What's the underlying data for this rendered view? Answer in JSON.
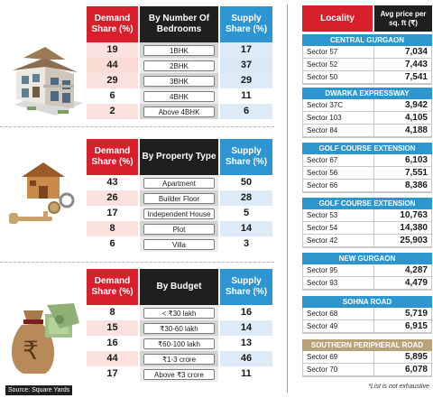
{
  "bedrooms_table": {
    "headers": {
      "demand": "Demand Share (%)",
      "category": "By Number Of Bedrooms",
      "supply": "Supply Share (%)"
    },
    "rows": [
      {
        "demand": "19",
        "label": "1BHK",
        "supply": "17"
      },
      {
        "demand": "44",
        "label": "2BHK",
        "supply": "37"
      },
      {
        "demand": "29",
        "label": "3BHK",
        "supply": "29"
      },
      {
        "demand": "6",
        "label": "4BHK",
        "supply": "11"
      },
      {
        "demand": "2",
        "label": "Above 4BHK",
        "supply": "6"
      }
    ]
  },
  "property_table": {
    "headers": {
      "demand": "Demand Share (%)",
      "category": "By Property Type",
      "supply": "Supply Share (%)"
    },
    "rows": [
      {
        "demand": "43",
        "label": "Apartment",
        "supply": "50"
      },
      {
        "demand": "26",
        "label": "Builder Floor",
        "supply": "28"
      },
      {
        "demand": "17",
        "label": "Independent House",
        "supply": "5"
      },
      {
        "demand": "8",
        "label": "Plot",
        "supply": "14"
      },
      {
        "demand": "6",
        "label": "Villa",
        "supply": "3"
      }
    ]
  },
  "budget_table": {
    "headers": {
      "demand": "Demand Share (%)",
      "category": "By Budget",
      "supply": "Supply Share (%)"
    },
    "rows": [
      {
        "demand": "8",
        "label": "< ₹30 lakh",
        "supply": "16"
      },
      {
        "demand": "15",
        "label": "₹30-60 lakh",
        "supply": "14"
      },
      {
        "demand": "16",
        "label": "₹60-100 lakh",
        "supply": "13"
      },
      {
        "demand": "44",
        "label": "₹1-3 crore",
        "supply": "46"
      },
      {
        "demand": "17",
        "label": "Above ₹3 crore",
        "supply": "11"
      }
    ]
  },
  "locality_table": {
    "headers": {
      "locality": "Locality",
      "price": "Avg price per sq. ft (₹)"
    },
    "regions": [
      {
        "name": "CENTRAL GURGAON",
        "rows": [
          {
            "sector": "Sector 57",
            "price": "7,034"
          },
          {
            "sector": "Sector 52",
            "price": "7,443"
          },
          {
            "sector": "Sector 50",
            "price": "7,541"
          }
        ]
      },
      {
        "name": "DWARKA EXPRESSWAY",
        "rows": [
          {
            "sector": "Sector 37C",
            "price": "3,942"
          },
          {
            "sector": "Sector 103",
            "price": "4,105"
          },
          {
            "sector": "Sector 84",
            "price": "4,188"
          }
        ]
      },
      {
        "name": "GOLF COURSE EXTENSION",
        "rows": [
          {
            "sector": "Sector 67",
            "price": "6,103"
          },
          {
            "sector": "Sector 56",
            "price": "7,551"
          },
          {
            "sector": "Sector 66",
            "price": "8,386"
          }
        ]
      },
      {
        "name": "GOLF COURSE EXTENSION",
        "rows": [
          {
            "sector": "Sector 53",
            "price": "10,763"
          },
          {
            "sector": "Sector 54",
            "price": "14,380"
          },
          {
            "sector": "Sector 42",
            "price": "25,903"
          }
        ]
      },
      {
        "name": "NEW GURGAON",
        "rows": [
          {
            "sector": "Sector 95",
            "price": "4,287"
          },
          {
            "sector": "Sector 93",
            "price": "4,479"
          }
        ]
      },
      {
        "name": "SOHNA ROAD",
        "rows": [
          {
            "sector": "Sector 68",
            "price": "5,719"
          },
          {
            "sector": "Sector 49",
            "price": "6,915"
          }
        ]
      },
      {
        "name": "SOUTHERN PERIPHERAL ROAD",
        "rows": [
          {
            "sector": "Sector 69",
            "price": "5,895"
          },
          {
            "sector": "Sector 70",
            "price": "6,078"
          }
        ]
      }
    ]
  },
  "footnote": "*List is not exhaustive",
  "source": "Source: Square Yards",
  "colors": {
    "demand": "#d7202b",
    "supply": "#2e95d3",
    "category": "#1f1f1f",
    "region": "#2d96cf",
    "region_alt": "#b7a27a"
  },
  "icons": [
    "house-illustration",
    "house-key-illustration",
    "rupee-money-bag-illustration"
  ]
}
